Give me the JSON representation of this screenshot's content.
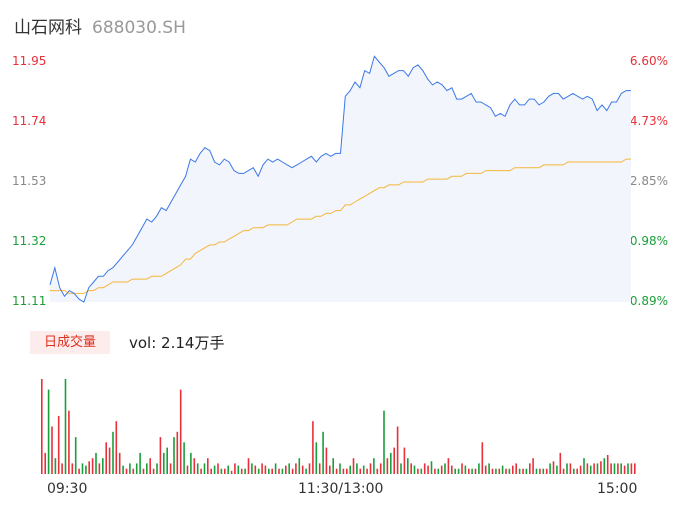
{
  "header": {
    "name": "山石网科",
    "code": "688030.SH"
  },
  "colors": {
    "up": "#e8303a",
    "down": "#1a9e3a",
    "flat": "#888888",
    "price_line": "#3b78e7",
    "avg_line": "#f5b73b",
    "fill": "#f2f5fc"
  },
  "chart_data": [
    {
      "type": "line",
      "series": [
        {
          "values": [
            11.17,
            11.23,
            11.16,
            11.13,
            11.15,
            11.14,
            11.12,
            11.11,
            11.16,
            11.18,
            11.2,
            11.2,
            11.22,
            11.23,
            11.25,
            11.27,
            11.29,
            11.31,
            11.34,
            11.37,
            11.4,
            11.39,
            11.41,
            11.44,
            11.43,
            11.46,
            11.49,
            11.52,
            11.55,
            11.61,
            11.6,
            11.63,
            11.65,
            11.64,
            11.6,
            11.59,
            11.61,
            11.6,
            11.57,
            11.56,
            11.56,
            11.57,
            11.58,
            11.55,
            11.59,
            11.61,
            11.6,
            11.61,
            11.6,
            11.59,
            11.58,
            11.59,
            11.6,
            11.61,
            11.62,
            11.6,
            11.62,
            11.63,
            11.62,
            11.63,
            11.63,
            11.83,
            11.85,
            11.88,
            11.86,
            11.92,
            11.91,
            11.97,
            11.95,
            11.93,
            11.9,
            11.91,
            11.92,
            11.92,
            11.9,
            11.93,
            11.94,
            11.92,
            11.89,
            11.87,
            11.88,
            11.87,
            11.85,
            11.86,
            11.82,
            11.82,
            11.83,
            11.84,
            11.81,
            11.81,
            11.8,
            11.79,
            11.76,
            11.77,
            11.76,
            11.8,
            11.82,
            11.8,
            11.8,
            11.82,
            11.82,
            11.8,
            11.81,
            11.83,
            11.84,
            11.84,
            11.82,
            11.83,
            11.84,
            11.83,
            11.82,
            11.83,
            11.82,
            11.78,
            11.8,
            11.78,
            11.81,
            11.81,
            11.84,
            11.85,
            11.85
          ]
        },
        {
          "values": [
            11.15,
            11.15,
            11.15,
            11.15,
            11.14,
            11.14,
            11.14,
            11.14,
            11.15,
            11.15,
            11.16,
            11.16,
            11.17,
            11.18,
            11.18,
            11.18,
            11.18,
            11.19,
            11.19,
            11.19,
            11.19,
            11.2,
            11.2,
            11.2,
            11.21,
            11.22,
            11.23,
            11.24,
            11.26,
            11.26,
            11.28,
            11.29,
            11.3,
            11.31,
            11.31,
            11.32,
            11.32,
            11.33,
            11.34,
            11.35,
            11.36,
            11.36,
            11.37,
            11.37,
            11.37,
            11.38,
            11.38,
            11.38,
            11.38,
            11.38,
            11.39,
            11.4,
            11.4,
            11.4,
            11.4,
            11.41,
            11.41,
            11.42,
            11.42,
            11.43,
            11.43,
            11.45,
            11.45,
            11.46,
            11.47,
            11.48,
            11.49,
            11.5,
            11.51,
            11.51,
            11.52,
            11.52,
            11.52,
            11.53,
            11.53,
            11.53,
            11.53,
            11.53,
            11.54,
            11.54,
            11.54,
            11.54,
            11.54,
            11.55,
            11.55,
            11.55,
            11.56,
            11.56,
            11.56,
            11.56,
            11.57,
            11.57,
            11.57,
            11.57,
            11.57,
            11.57,
            11.58,
            11.58,
            11.58,
            11.58,
            11.58,
            11.58,
            11.59,
            11.59,
            11.59,
            11.59,
            11.59,
            11.6,
            11.6,
            11.6,
            11.6,
            11.6,
            11.6,
            11.6,
            11.6,
            11.6,
            11.6,
            11.6,
            11.6,
            11.61,
            11.61
          ]
        }
      ],
      "ylim": [
        11.11,
        11.95
      ],
      "y_ticks_left": [
        "11.95",
        "11.74",
        "11.53",
        "11.32",
        "11.11"
      ],
      "y_ticks_right": [
        "6.60%",
        "4.73%",
        "2.85%",
        "0.98%",
        "-0.89%"
      ],
      "x_ticks": [
        "09:30",
        "11:30/13:00",
        "15:00"
      ]
    },
    {
      "type": "bar",
      "label": "日成交量",
      "total_text": "vol: 2.14万手",
      "values": [
        90,
        20,
        80,
        45,
        15,
        55,
        10,
        90,
        60,
        10,
        35,
        5,
        10,
        8,
        12,
        15,
        20,
        10,
        15,
        30,
        25,
        40,
        50,
        20,
        8,
        5,
        10,
        5,
        10,
        20,
        5,
        10,
        15,
        5,
        10,
        35,
        20,
        25,
        10,
        35,
        40,
        80,
        30,
        8,
        20,
        15,
        10,
        5,
        10,
        15,
        5,
        8,
        10,
        5,
        5,
        8,
        3,
        10,
        8,
        5,
        5,
        15,
        10,
        8,
        5,
        10,
        8,
        5,
        5,
        10,
        5,
        5,
        8,
        10,
        5,
        10,
        15,
        8,
        5,
        10,
        50,
        30,
        10,
        40,
        25,
        8,
        15,
        5,
        10,
        5,
        5,
        8,
        15,
        10,
        5,
        8,
        5,
        10,
        15,
        5,
        10,
        60,
        15,
        20,
        25,
        45,
        10,
        25,
        15,
        10,
        8,
        5,
        5,
        10,
        8,
        12,
        5,
        5,
        8,
        10,
        15,
        8,
        5,
        5,
        10,
        8,
        5,
        5,
        5,
        10,
        30,
        8,
        10,
        5,
        5,
        5,
        8,
        5,
        5,
        8,
        10,
        5,
        5,
        5,
        10,
        15,
        5,
        5,
        5,
        5,
        10,
        12,
        8,
        20,
        5,
        10,
        10,
        5,
        5,
        8,
        15,
        10,
        8,
        10,
        10,
        12,
        15,
        18,
        10,
        10,
        10,
        10,
        8,
        10,
        10,
        10
      ],
      "dirs": [
        1,
        1,
        -1,
        1,
        -1,
        1,
        1,
        -1,
        1,
        1,
        -1,
        1,
        -1,
        -1,
        1,
        1,
        -1,
        1,
        -1,
        1,
        1,
        -1,
        1,
        1,
        -1,
        1,
        -1,
        1,
        -1,
        -1,
        1,
        -1,
        1,
        1,
        -1,
        1,
        -1,
        -1,
        1,
        -1,
        1,
        1,
        -1,
        1,
        -1,
        1,
        -1,
        1,
        -1,
        1,
        1,
        -1,
        1,
        -1,
        1,
        -1,
        1,
        1,
        -1,
        1,
        -1,
        1,
        -1,
        1,
        -1,
        1,
        1,
        -1,
        1,
        -1,
        1,
        -1,
        1,
        -1,
        1,
        1,
        -1,
        1,
        -1,
        1,
        1,
        -1,
        1,
        -1,
        1,
        1,
        -1,
        1,
        -1,
        1,
        1,
        -1,
        1,
        -1,
        1,
        -1,
        1,
        1,
        -1,
        1,
        1,
        -1,
        1,
        -1,
        1,
        1,
        -1,
        1,
        -1,
        1,
        -1,
        1,
        -1,
        1,
        1,
        -1,
        1,
        -1,
        1,
        -1,
        1,
        1,
        -1,
        -1,
        1,
        -1,
        1,
        -1,
        1,
        -1,
        1,
        1,
        -1,
        1,
        -1,
        1,
        -1,
        1,
        -1,
        1,
        1,
        -1,
        1,
        -1,
        1,
        1,
        -1,
        1,
        -1,
        1,
        -1,
        1,
        -1,
        1,
        1,
        -1,
        1,
        -1,
        1,
        1,
        -1,
        1,
        -1,
        1,
        -1,
        1,
        -1,
        1,
        1,
        -1,
        1,
        -1,
        1,
        -1,
        1,
        1,
        -1,
        0,
        0,
        0,
        0,
        0,
        0
      ]
    }
  ]
}
